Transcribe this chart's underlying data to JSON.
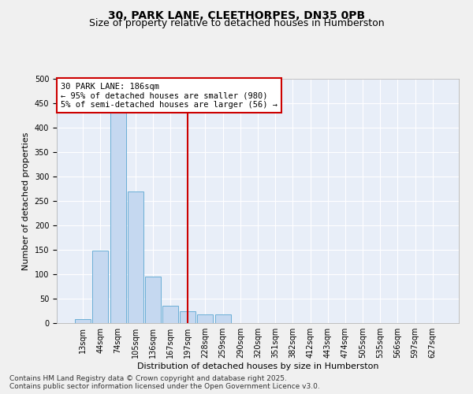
{
  "title_line1": "30, PARK LANE, CLEETHORPES, DN35 0PB",
  "title_line2": "Size of property relative to detached houses in Humberston",
  "categories": [
    "13sqm",
    "44sqm",
    "74sqm",
    "105sqm",
    "136sqm",
    "167sqm",
    "197sqm",
    "228sqm",
    "259sqm",
    "290sqm",
    "320sqm",
    "351sqm",
    "382sqm",
    "412sqm",
    "443sqm",
    "474sqm",
    "505sqm",
    "535sqm",
    "566sqm",
    "597sqm",
    "627sqm"
  ],
  "values": [
    8,
    148,
    430,
    270,
    95,
    35,
    25,
    18,
    18,
    0,
    0,
    0,
    0,
    0,
    0,
    0,
    0,
    0,
    0,
    0,
    0
  ],
  "bar_color": "#c5d8f0",
  "bar_edge_color": "#6aaed6",
  "background_color": "#e8eef8",
  "grid_color": "#ffffff",
  "vline_x_index": 6,
  "vline_color": "#cc0000",
  "annotation_line1": "30 PARK LANE: 186sqm",
  "annotation_line2": "← 95% of detached houses are smaller (980)",
  "annotation_line3": "5% of semi-detached houses are larger (56) →",
  "annotation_box_facecolor": "#ffffff",
  "annotation_box_edgecolor": "#cc0000",
  "xlabel": "Distribution of detached houses by size in Humberston",
  "ylabel": "Number of detached properties",
  "ylim": [
    0,
    500
  ],
  "yticks": [
    0,
    50,
    100,
    150,
    200,
    250,
    300,
    350,
    400,
    450,
    500
  ],
  "footer_line1": "Contains HM Land Registry data © Crown copyright and database right 2025.",
  "footer_line2": "Contains public sector information licensed under the Open Government Licence v3.0.",
  "title_fontsize": 10,
  "subtitle_fontsize": 9,
  "axis_label_fontsize": 8,
  "tick_fontsize": 7,
  "annotation_fontsize": 7.5,
  "footer_fontsize": 6.5
}
